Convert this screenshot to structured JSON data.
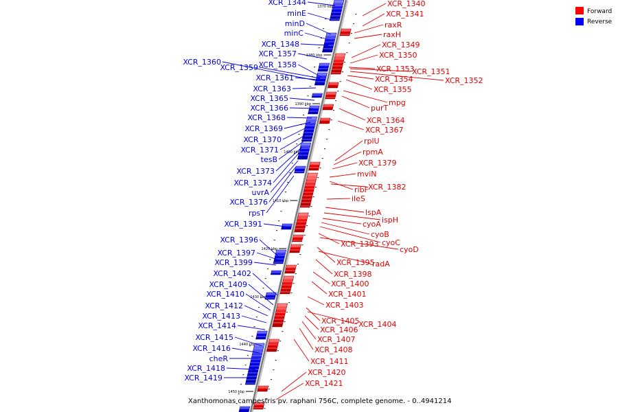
{
  "legend": [
    {
      "label": "Forward",
      "color": "#ff0000"
    },
    {
      "label": "Reverse",
      "color": "#0000ff"
    }
  ],
  "caption": "Xanthomonas campestris pv. raphani 756C, complete genome. - 0..4941214",
  "map": {
    "start_kbp": 1366,
    "end_kbp": 1453,
    "ticks": [
      "1370 kbp",
      "1380 kbp",
      "1390 kbp",
      "1400 kbp",
      "1410 kbp",
      "1420 kbp",
      "1430 kbp",
      "1440 kbp",
      "1450 kbp"
    ]
  },
  "forward_genes": [
    "XCR_1340",
    "XCR_1341",
    "raxR",
    "raxH",
    "XCR_1349",
    "XCR_1350",
    "XCR_1353",
    "XCR_1351",
    "XCR_1352",
    "XCR_1354",
    "XCR_1355",
    "mpg",
    "purT",
    "XCR_1364",
    "XCR_1367",
    "rplU",
    "rpmA",
    "XCR_1379",
    "mviN",
    "ribF",
    "XCR_1382",
    "ileS",
    "lspA",
    "ispH",
    "cyoA",
    "cyoB",
    "cyoC",
    "XCR_1393",
    "cyoD",
    "XCR_1395",
    "radA",
    "XCR_1398",
    "XCR_1400",
    "XCR_1401",
    "XCR_1403",
    "XCR_1405",
    "XCR_1404",
    "XCR_1406",
    "XCR_1407",
    "XCR_1408",
    "XCR_1411",
    "XCR_1420",
    "XCR_1421"
  ],
  "reverse_genes": [
    "XCR_1344",
    "minE",
    "minD",
    "minC",
    "XCR_1348",
    "XCR_1357",
    "XCR_1360",
    "XCR_1359",
    "XCR_1358",
    "XCR_1361",
    "XCR_1363",
    "XCR_1365",
    "XCR_1366",
    "XCR_1368",
    "XCR_1369",
    "XCR_1370",
    "XCR_1371",
    "tesB",
    "XCR_1373",
    "XCR_1374",
    "uvrA",
    "XCR_1376",
    "rpsT",
    "XCR_1391",
    "XCR_1396",
    "XCR_1397",
    "XCR_1399",
    "XCR_1402",
    "XCR_1409",
    "XCR_1410",
    "XCR_1412",
    "XCR_1413",
    "XCR_1414",
    "XCR_1415",
    "XCR_1416",
    "cheR",
    "XCR_1418",
    "XCR_1419"
  ]
}
